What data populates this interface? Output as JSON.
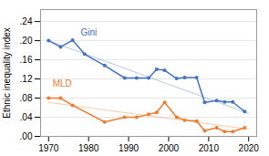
{
  "chart_data": {
    "type": "line",
    "ylabel": "Ethnic inequality index",
    "xlim": [
      1968,
      2022
    ],
    "ylim": [
      0.0,
      0.265
    ],
    "xticks": [
      1970,
      1980,
      1990,
      2000,
      2010,
      2020
    ],
    "yticks": [
      {
        "value": 0.0,
        "label": ".00"
      },
      {
        "value": 0.04,
        "label": ".04"
      },
      {
        "value": 0.08,
        "label": ".08"
      },
      {
        "value": 0.12,
        "label": ".12"
      },
      {
        "value": 0.16,
        "label": ".16"
      },
      {
        "value": 0.2,
        "label": ".20"
      },
      {
        "value": 0.24,
        "label": ".24"
      }
    ],
    "grid": true,
    "series": [
      {
        "x": [
          1970,
          2020
        ],
        "values": [
          0.2,
          0.048
        ],
        "color": "#4472C4",
        "marker": "none"
      },
      {
        "x": [
          1970,
          2020
        ],
        "values": [
          0.071,
          0.015
        ],
        "color": "#ED7D31",
        "marker": "none"
      },
      {
        "name": "Gini",
        "color": "#4472C4",
        "marker": "circle",
        "x": [
          1970,
          1973,
          1976,
          1979,
          1984,
          1989,
          1992,
          1995,
          1997,
          1999,
          2002,
          2004,
          2007,
          2009,
          2012,
          2014,
          2016,
          2019
        ],
        "values": [
          0.2,
          0.187,
          0.201,
          0.172,
          0.148,
          0.122,
          0.122,
          0.122,
          0.14,
          0.138,
          0.121,
          0.123,
          0.123,
          0.071,
          0.075,
          0.072,
          0.072,
          0.052
        ]
      },
      {
        "name": "MLD",
        "color": "#ED7D31",
        "marker": "circle",
        "x": [
          1970,
          1973,
          1976,
          1984,
          1989,
          1992,
          1995,
          1997,
          1999,
          2002,
          2004,
          2007,
          2009,
          2012,
          2014,
          2016,
          2019
        ],
        "values": [
          0.08,
          0.08,
          0.065,
          0.03,
          0.04,
          0.04,
          0.046,
          0.05,
          0.071,
          0.04,
          0.034,
          0.032,
          0.012,
          0.018,
          0.01,
          0.01,
          0.018
        ]
      }
    ],
    "annotations": [
      {
        "text": "Gini",
        "x": 1978,
        "y": 0.21
      },
      {
        "text": "MLD",
        "x": 1971,
        "y": 0.104
      }
    ]
  }
}
